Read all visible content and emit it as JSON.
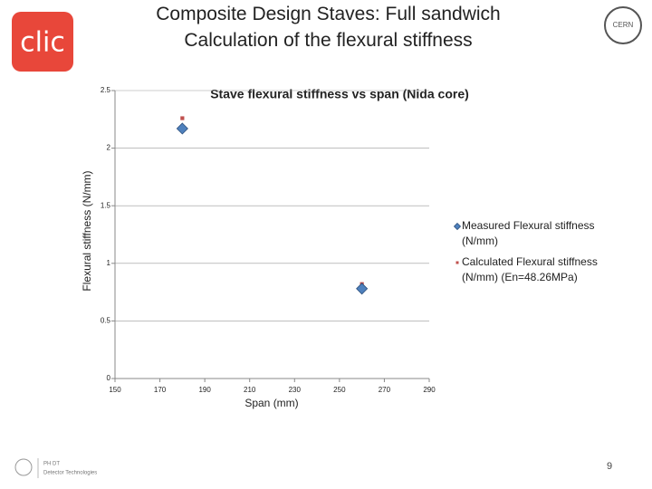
{
  "slide": {
    "title_lines": [
      "Composite Design Staves: Full sandwich",
      "Calculation of the flexural stiffness"
    ],
    "logo_text": "clic",
    "cern_text": "CERN",
    "footer_lines": [
      "PH DT",
      "Detector Technologies"
    ],
    "page_number": 9
  },
  "chart_data": {
    "type": "scatter",
    "title": "Stave flexural stiffness vs span (Nida core)",
    "x_label": "Span (mm)",
    "y_label": "Flexural stiffness (N/mm)",
    "xlim": [
      150,
      290
    ],
    "xticks": [
      150,
      170,
      190,
      210,
      230,
      250,
      270,
      290
    ],
    "ylim": [
      0,
      2.5
    ],
    "yticks": [
      0,
      0.5,
      1,
      1.5,
      2,
      2.5
    ],
    "grid": true,
    "legend": "right",
    "series": [
      {
        "name": "Measured Flexural stiffness (N/mm)",
        "color": "#4f81bd",
        "marker": "diamond",
        "x": [
          180,
          260
        ],
        "values": [
          2.17,
          0.78
        ]
      },
      {
        "name": "Calculated Flexural stiffness (N/mm) (En=48.26MPa)",
        "color": "#c0504d",
        "marker": "square",
        "x": [
          180,
          260
        ],
        "values": [
          2.26,
          0.82
        ]
      }
    ]
  }
}
